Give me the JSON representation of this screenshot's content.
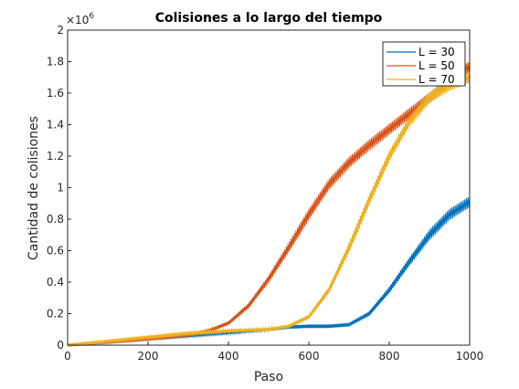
{
  "chart_data": {
    "type": "line",
    "title": "Colisiones a lo largo del tiempo",
    "xlabel": "Paso",
    "ylabel": "Cantidad de colisiones",
    "y_multiplier": "×10",
    "y_multiplier_exp": "6",
    "xlim": [
      0,
      1000
    ],
    "ylim": [
      0,
      2
    ],
    "xticks": [
      0,
      200,
      400,
      600,
      800,
      1000
    ],
    "yticks": [
      0,
      0.2,
      0.4,
      0.6,
      0.8,
      1,
      1.2,
      1.4,
      1.6,
      1.8,
      2
    ],
    "ytick_labels": [
      "0",
      "0.2",
      "0.4",
      "0.6",
      "0.8",
      "1",
      "1.2",
      "1.4",
      "1.6",
      "1.8",
      "2"
    ],
    "grid": false,
    "legend_position": "top-right",
    "series": [
      {
        "name": "L = 30",
        "color": "#0072BD",
        "x": [
          0,
          100,
          200,
          300,
          400,
          500,
          550,
          600,
          650,
          700,
          750,
          800,
          850,
          900,
          950,
          1000
        ],
        "y": [
          0,
          0.02,
          0.04,
          0.06,
          0.08,
          0.1,
          0.115,
          0.12,
          0.12,
          0.13,
          0.2,
          0.35,
          0.53,
          0.7,
          0.83,
          0.91
        ]
      },
      {
        "name": "L = 50",
        "color": "#D95319",
        "x": [
          0,
          100,
          200,
          300,
          350,
          400,
          450,
          500,
          550,
          600,
          650,
          700,
          750,
          800,
          850,
          900,
          950,
          1000
        ],
        "y": [
          0,
          0.02,
          0.04,
          0.065,
          0.09,
          0.14,
          0.25,
          0.42,
          0.62,
          0.83,
          1.02,
          1.16,
          1.27,
          1.37,
          1.47,
          1.57,
          1.67,
          1.77
        ]
      },
      {
        "name": "L = 70",
        "color": "#EDB120",
        "x": [
          0,
          100,
          200,
          300,
          400,
          500,
          550,
          600,
          650,
          700,
          750,
          800,
          850,
          900,
          950,
          1000
        ],
        "y": [
          0,
          0.025,
          0.05,
          0.075,
          0.09,
          0.1,
          0.12,
          0.18,
          0.35,
          0.62,
          0.92,
          1.2,
          1.42,
          1.57,
          1.65,
          1.7
        ]
      }
    ]
  }
}
